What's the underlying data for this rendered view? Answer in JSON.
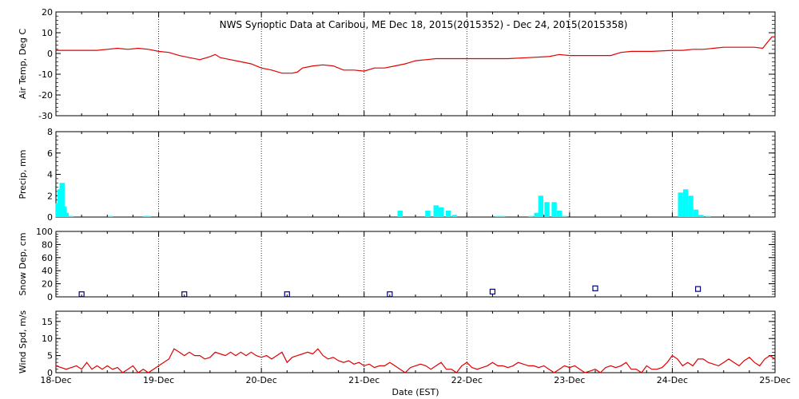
{
  "title": "NWS Synoptic Data at Caribou, ME    Dec 18, 2015(2015352) - Dec 24, 2015(2015358)",
  "xlabel": "Date (EST)",
  "colors": {
    "temp": "#e00000",
    "precip": "#00ffff",
    "snow": "#000080",
    "grid": "#000000"
  },
  "x_ticks": [
    "18-Dec",
    "19-Dec",
    "20-Dec",
    "21-Dec",
    "22-Dec",
    "23-Dec",
    "24-Dec",
    "25-Dec"
  ],
  "chart_data": [
    {
      "type": "line",
      "ylabel": "Air Temp, Deg C",
      "ylim": [
        -30,
        20
      ],
      "yticks": [
        20,
        10,
        0,
        -10,
        -20,
        -30
      ],
      "x_unit": "days since 18-Dec 00:00 EST",
      "points": [
        [
          0,
          1.5
        ],
        [
          0.2,
          1.5
        ],
        [
          0.4,
          1.5
        ],
        [
          0.5,
          2
        ],
        [
          0.6,
          2.5
        ],
        [
          0.7,
          2
        ],
        [
          0.8,
          2.5
        ],
        [
          0.9,
          2
        ],
        [
          1.0,
          1
        ],
        [
          1.1,
          0.5
        ],
        [
          1.2,
          -1
        ],
        [
          1.3,
          -2
        ],
        [
          1.4,
          -3
        ],
        [
          1.5,
          -1.5
        ],
        [
          1.55,
          -0.5
        ],
        [
          1.6,
          -2
        ],
        [
          1.7,
          -3
        ],
        [
          1.8,
          -4
        ],
        [
          1.9,
          -5
        ],
        [
          2.0,
          -7
        ],
        [
          2.1,
          -8
        ],
        [
          2.2,
          -9.5
        ],
        [
          2.3,
          -9.5
        ],
        [
          2.35,
          -9
        ],
        [
          2.4,
          -7
        ],
        [
          2.5,
          -6
        ],
        [
          2.6,
          -5.5
        ],
        [
          2.7,
          -6
        ],
        [
          2.8,
          -8
        ],
        [
          2.9,
          -8
        ],
        [
          3.0,
          -8.5
        ],
        [
          3.1,
          -7
        ],
        [
          3.2,
          -7
        ],
        [
          3.3,
          -6
        ],
        [
          3.4,
          -5
        ],
        [
          3.5,
          -3.5
        ],
        [
          3.6,
          -3
        ],
        [
          3.7,
          -2.5
        ],
        [
          3.8,
          -2.5
        ],
        [
          3.9,
          -2.5
        ],
        [
          4.0,
          -2.5
        ],
        [
          4.2,
          -2.5
        ],
        [
          4.4,
          -2.5
        ],
        [
          4.6,
          -2
        ],
        [
          4.8,
          -1.5
        ],
        [
          4.9,
          -0.5
        ],
        [
          5.0,
          -1
        ],
        [
          5.2,
          -1
        ],
        [
          5.4,
          -1
        ],
        [
          5.5,
          0.5
        ],
        [
          5.6,
          1
        ],
        [
          5.8,
          1
        ],
        [
          6.0,
          1.5
        ],
        [
          6.1,
          1.5
        ],
        [
          6.2,
          2
        ],
        [
          6.3,
          2
        ],
        [
          6.4,
          2.5
        ],
        [
          6.5,
          3
        ],
        [
          6.6,
          3
        ],
        [
          6.8,
          3
        ],
        [
          6.88,
          2.5
        ],
        [
          6.92,
          5
        ],
        [
          6.97,
          8
        ],
        [
          7.0,
          8
        ]
      ]
    },
    {
      "type": "bar",
      "ylabel": "Precip, mm",
      "ylim": [
        0,
        8
      ],
      "yticks": [
        8,
        6,
        4,
        2,
        0
      ],
      "bars": [
        [
          0.02,
          1.3
        ],
        [
          0.04,
          2.6
        ],
        [
          0.06,
          3.2
        ],
        [
          0.08,
          1.0
        ],
        [
          0.1,
          0.4
        ],
        [
          0.15,
          0.1
        ],
        [
          0.53,
          0.1
        ],
        [
          0.87,
          0.1
        ],
        [
          0.9,
          0.1
        ],
        [
          3.35,
          0.6
        ],
        [
          3.62,
          0.6
        ],
        [
          3.7,
          1.1
        ],
        [
          3.75,
          0.9
        ],
        [
          3.82,
          0.6
        ],
        [
          3.88,
          0.2
        ],
        [
          4.3,
          0.1
        ],
        [
          4.35,
          0.1
        ],
        [
          4.62,
          0.1
        ],
        [
          4.68,
          0.4
        ],
        [
          4.72,
          2.0
        ],
        [
          4.78,
          1.4
        ],
        [
          4.85,
          1.4
        ],
        [
          4.9,
          0.6
        ],
        [
          4.95,
          0.1
        ],
        [
          6.08,
          2.3
        ],
        [
          6.13,
          2.6
        ],
        [
          6.18,
          2.0
        ],
        [
          6.23,
          0.7
        ],
        [
          6.28,
          0.2
        ],
        [
          6.35,
          0.1
        ]
      ],
      "bar_width_days": 0.05
    },
    {
      "type": "scatter",
      "ylabel": "Snow Dep, cm",
      "ylim": [
        0,
        100
      ],
      "yticks": [
        100,
        80,
        60,
        40,
        20,
        0
      ],
      "points": [
        [
          0.25,
          4
        ],
        [
          1.25,
          4
        ],
        [
          2.25,
          4
        ],
        [
          3.25,
          4
        ],
        [
          4.25,
          8
        ],
        [
          5.25,
          13
        ],
        [
          6.25,
          12
        ]
      ]
    },
    {
      "type": "line",
      "ylabel": "Wind Spd, m/s",
      "ylim": [
        0,
        18
      ],
      "yticks": [
        15,
        10,
        5,
        0
      ],
      "points": [
        [
          0,
          2
        ],
        [
          0.1,
          1
        ],
        [
          0.2,
          2
        ],
        [
          0.25,
          1
        ],
        [
          0.3,
          3
        ],
        [
          0.35,
          1
        ],
        [
          0.4,
          2
        ],
        [
          0.45,
          1
        ],
        [
          0.5,
          2
        ],
        [
          0.55,
          1
        ],
        [
          0.6,
          1.5
        ],
        [
          0.65,
          0
        ],
        [
          0.7,
          1
        ],
        [
          0.75,
          2
        ],
        [
          0.8,
          0
        ],
        [
          0.85,
          1
        ],
        [
          0.9,
          0
        ],
        [
          1.0,
          2
        ],
        [
          1.1,
          4
        ],
        [
          1.15,
          7
        ],
        [
          1.2,
          6
        ],
        [
          1.25,
          5
        ],
        [
          1.3,
          6
        ],
        [
          1.35,
          5
        ],
        [
          1.4,
          5
        ],
        [
          1.45,
          4
        ],
        [
          1.5,
          4.5
        ],
        [
          1.55,
          6
        ],
        [
          1.6,
          5.5
        ],
        [
          1.65,
          5
        ],
        [
          1.7,
          6
        ],
        [
          1.75,
          5
        ],
        [
          1.8,
          6
        ],
        [
          1.85,
          5
        ],
        [
          1.9,
          6
        ],
        [
          1.95,
          5
        ],
        [
          2.0,
          4.5
        ],
        [
          2.05,
          5
        ],
        [
          2.1,
          4
        ],
        [
          2.15,
          5
        ],
        [
          2.2,
          6
        ],
        [
          2.25,
          3
        ],
        [
          2.3,
          4.5
        ],
        [
          2.35,
          5
        ],
        [
          2.4,
          5.5
        ],
        [
          2.45,
          6
        ],
        [
          2.5,
          5.5
        ],
        [
          2.55,
          7
        ],
        [
          2.6,
          5
        ],
        [
          2.65,
          4
        ],
        [
          2.7,
          4.5
        ],
        [
          2.75,
          3.5
        ],
        [
          2.8,
          3
        ],
        [
          2.85,
          3.5
        ],
        [
          2.9,
          2.5
        ],
        [
          2.95,
          3
        ],
        [
          3.0,
          2
        ],
        [
          3.05,
          2.5
        ],
        [
          3.1,
          1.5
        ],
        [
          3.15,
          2
        ],
        [
          3.2,
          2
        ],
        [
          3.25,
          3
        ],
        [
          3.3,
          2
        ],
        [
          3.35,
          1
        ],
        [
          3.4,
          0
        ],
        [
          3.45,
          1.5
        ],
        [
          3.5,
          2
        ],
        [
          3.55,
          2.5
        ],
        [
          3.6,
          2
        ],
        [
          3.65,
          1
        ],
        [
          3.7,
          2
        ],
        [
          3.75,
          3
        ],
        [
          3.8,
          1
        ],
        [
          3.85,
          1
        ],
        [
          3.9,
          0
        ],
        [
          3.95,
          2
        ],
        [
          4.0,
          3
        ],
        [
          4.05,
          1.5
        ],
        [
          4.1,
          1
        ],
        [
          4.15,
          1.5
        ],
        [
          4.2,
          2
        ],
        [
          4.25,
          3
        ],
        [
          4.3,
          2
        ],
        [
          4.35,
          2
        ],
        [
          4.4,
          1.5
        ],
        [
          4.45,
          2
        ],
        [
          4.5,
          3
        ],
        [
          4.55,
          2.5
        ],
        [
          4.6,
          2
        ],
        [
          4.65,
          2
        ],
        [
          4.7,
          1.5
        ],
        [
          4.75,
          2
        ],
        [
          4.8,
          1
        ],
        [
          4.85,
          0
        ],
        [
          4.9,
          1
        ],
        [
          4.95,
          2
        ],
        [
          5.0,
          1.5
        ],
        [
          5.05,
          2
        ],
        [
          5.1,
          1
        ],
        [
          5.15,
          0
        ],
        [
          5.2,
          0.5
        ],
        [
          5.25,
          1
        ],
        [
          5.3,
          0
        ],
        [
          5.35,
          1.5
        ],
        [
          5.4,
          2
        ],
        [
          5.45,
          1.5
        ],
        [
          5.5,
          2
        ],
        [
          5.55,
          3
        ],
        [
          5.6,
          1
        ],
        [
          5.65,
          1
        ],
        [
          5.7,
          0
        ],
        [
          5.75,
          2
        ],
        [
          5.8,
          1
        ],
        [
          5.85,
          1
        ],
        [
          5.9,
          1.5
        ],
        [
          5.95,
          3
        ],
        [
          6.0,
          5
        ],
        [
          6.05,
          4
        ],
        [
          6.1,
          2
        ],
        [
          6.15,
          3
        ],
        [
          6.2,
          2
        ],
        [
          6.25,
          4
        ],
        [
          6.3,
          4
        ],
        [
          6.35,
          3
        ],
        [
          6.4,
          2.5
        ],
        [
          6.45,
          2
        ],
        [
          6.5,
          3
        ],
        [
          6.55,
          4
        ],
        [
          6.6,
          3
        ],
        [
          6.65,
          2
        ],
        [
          6.7,
          3.5
        ],
        [
          6.75,
          4.5
        ],
        [
          6.8,
          3
        ],
        [
          6.85,
          2
        ],
        [
          6.9,
          4
        ],
        [
          6.95,
          5
        ],
        [
          7.0,
          4
        ]
      ]
    }
  ]
}
